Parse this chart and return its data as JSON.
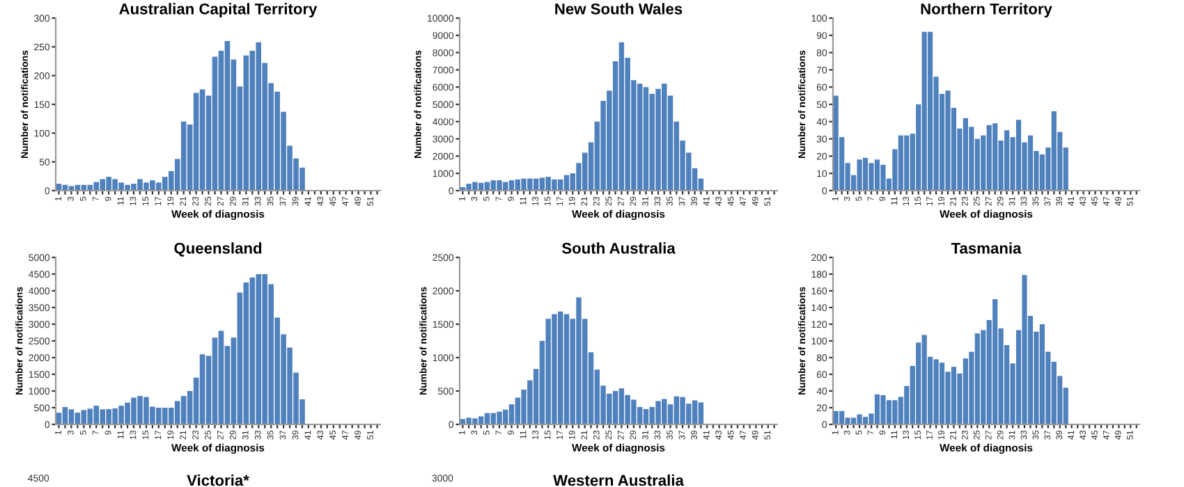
{
  "chart_data": [
    {
      "type": "bar",
      "title": "Australian Capital Territory",
      "xlabel": "Week of diagnosis",
      "ylabel": "Number of notifications",
      "color": "#4f81bd",
      "categories": [
        "1",
        null,
        "3",
        null,
        "5",
        null,
        "7",
        null,
        "9",
        null,
        "11",
        null,
        "13",
        null,
        "15",
        null,
        "17",
        null,
        "19",
        null,
        "21",
        null,
        "23",
        null,
        "25",
        null,
        "27",
        null,
        "29",
        null,
        "31",
        null,
        "33",
        null,
        "35",
        null,
        "37",
        null,
        "39",
        null,
        "41",
        null,
        "43",
        null,
        "45",
        null,
        "47",
        null,
        "49",
        null,
        "51",
        null
      ],
      "values": [
        12,
        10,
        8,
        10,
        10,
        10,
        15,
        20,
        24,
        20,
        14,
        10,
        12,
        20,
        14,
        18,
        14,
        24,
        34,
        55,
        120,
        115,
        170,
        176,
        165,
        233,
        243,
        260,
        228,
        181,
        235,
        243,
        258,
        222,
        187,
        172,
        137,
        78,
        56,
        40,
        null,
        null,
        null,
        null,
        null,
        null,
        null,
        null,
        null,
        null,
        null,
        null
      ],
      "ylim": [
        0,
        300
      ],
      "yticks": [
        0,
        50,
        100,
        150,
        200,
        250,
        300
      ],
      "grid": false
    },
    {
      "type": "bar",
      "title": "New South Wales",
      "xlabel": "Week of diagnosis",
      "ylabel": "Number of notifications",
      "color": "#4f81bd",
      "categories": [
        "1",
        null,
        "3",
        null,
        "5",
        null,
        "7",
        null,
        "9",
        null,
        "11",
        null,
        "13",
        null,
        "15",
        null,
        "17",
        null,
        "19",
        null,
        "21",
        null,
        "23",
        null,
        "25",
        null,
        "27",
        null,
        "29",
        null,
        "31",
        null,
        "33",
        null,
        "35",
        null,
        "37",
        null,
        "39",
        null,
        "41",
        null,
        "43",
        null,
        "45",
        null,
        "47",
        null,
        "49",
        null,
        "51",
        null
      ],
      "values": [
        200,
        400,
        500,
        450,
        500,
        600,
        600,
        500,
        600,
        650,
        700,
        700,
        700,
        750,
        800,
        650,
        650,
        900,
        1000,
        1600,
        2200,
        2800,
        4000,
        5200,
        5800,
        7500,
        8600,
        7700,
        6400,
        6200,
        6000,
        5600,
        5900,
        6200,
        5500,
        4000,
        2900,
        2200,
        1300,
        700,
        null,
        null,
        null,
        null,
        null,
        null,
        null,
        null,
        null,
        null,
        null,
        null
      ],
      "ylim": [
        0,
        10000
      ],
      "yticks": [
        0,
        1000,
        2000,
        3000,
        4000,
        5000,
        6000,
        7000,
        8000,
        9000,
        10000
      ],
      "grid": false
    },
    {
      "type": "bar",
      "title": "Northern Territory",
      "xlabel": "Week of diagnosis",
      "ylabel": "Number of notifications",
      "color": "#4f81bd",
      "categories": [
        "1",
        null,
        "3",
        null,
        "5",
        null,
        "7",
        null,
        "9",
        null,
        "11",
        null,
        "13",
        null,
        "15",
        null,
        "17",
        null,
        "19",
        null,
        "21",
        null,
        "23",
        null,
        "25",
        null,
        "27",
        null,
        "29",
        null,
        "31",
        null,
        "33",
        null,
        "35",
        null,
        "37",
        null,
        "39",
        null,
        "41",
        null,
        "43",
        null,
        "45",
        null,
        "47",
        null,
        "49",
        null,
        "51",
        null
      ],
      "values": [
        55,
        31,
        16,
        9,
        18,
        19,
        16,
        18,
        15,
        7,
        24,
        32,
        32,
        33,
        50,
        92,
        92,
        66,
        56,
        58,
        48,
        36,
        42,
        37,
        30,
        32,
        38,
        39,
        29,
        35,
        31,
        41,
        28,
        32,
        23,
        21,
        25,
        46,
        34,
        25,
        null,
        null,
        null,
        null,
        null,
        null,
        null,
        null,
        null,
        null,
        null,
        null
      ],
      "ylim": [
        0,
        100
      ],
      "yticks": [
        0,
        10,
        20,
        30,
        40,
        50,
        60,
        70,
        80,
        90,
        100
      ],
      "grid": false
    },
    {
      "type": "bar",
      "title": "Queensland",
      "xlabel": "Week of diagnosis",
      "ylabel": "Number of notifications",
      "color": "#4f81bd",
      "categories": [
        "1",
        null,
        "3",
        null,
        "5",
        null,
        "7",
        null,
        "9",
        null,
        "11",
        null,
        "13",
        null,
        "15",
        null,
        "17",
        null,
        "19",
        null,
        "21",
        null,
        "23",
        null,
        "25",
        null,
        "27",
        null,
        "29",
        null,
        "31",
        null,
        "33",
        null,
        "35",
        null,
        "37",
        null,
        "39",
        null,
        "41",
        null,
        "43",
        null,
        "45",
        null,
        "47",
        null,
        "49",
        null,
        "51",
        null
      ],
      "values": [
        350,
        520,
        450,
        350,
        430,
        470,
        560,
        450,
        460,
        480,
        560,
        650,
        800,
        850,
        820,
        530,
        500,
        500,
        500,
        700,
        850,
        1000,
        1400,
        2100,
        2050,
        2600,
        2800,
        2350,
        2600,
        3950,
        4250,
        4400,
        4500,
        4500,
        4200,
        3200,
        2700,
        2300,
        1550,
        750,
        null,
        null,
        null,
        null,
        null,
        null,
        null,
        null,
        null,
        null,
        null,
        null
      ],
      "ylim": [
        0,
        5000
      ],
      "yticks": [
        0,
        500,
        1000,
        1500,
        2000,
        2500,
        3000,
        3500,
        4000,
        4500,
        5000
      ],
      "grid": false
    },
    {
      "type": "bar",
      "title": "South Australia",
      "xlabel": "Week of diagnosis",
      "ylabel": "Number of notifications",
      "color": "#4f81bd",
      "categories": [
        "1",
        null,
        "3",
        null,
        "5",
        null,
        "7",
        null,
        "9",
        null,
        "11",
        null,
        "13",
        null,
        "15",
        null,
        "17",
        null,
        "19",
        null,
        "21",
        null,
        "23",
        null,
        "25",
        null,
        "27",
        null,
        "29",
        null,
        "31",
        null,
        "33",
        null,
        "35",
        null,
        "37",
        null,
        "39",
        null,
        "41",
        null,
        "43",
        null,
        "45",
        null,
        "47",
        null,
        "49",
        null,
        "51",
        null
      ],
      "values": [
        80,
        100,
        90,
        120,
        170,
        170,
        190,
        220,
        300,
        400,
        520,
        660,
        830,
        1250,
        1580,
        1650,
        1690,
        1650,
        1580,
        1900,
        1580,
        1080,
        820,
        580,
        460,
        500,
        540,
        440,
        370,
        260,
        230,
        260,
        350,
        380,
        300,
        420,
        410,
        310,
        360,
        330,
        null,
        null,
        null,
        null,
        null,
        null,
        null,
        null,
        null,
        null,
        null,
        null
      ],
      "ylim": [
        0,
        2500
      ],
      "yticks": [
        0,
        500,
        1000,
        1500,
        2000,
        2500
      ],
      "grid": false
    },
    {
      "type": "bar",
      "title": "Tasmania",
      "xlabel": "Week of diagnosis",
      "ylabel": "Number of notifications",
      "color": "#4f81bd",
      "categories": [
        "1",
        null,
        "3",
        null,
        "5",
        null,
        "7",
        null,
        "9",
        null,
        "11",
        null,
        "13",
        null,
        "15",
        null,
        "17",
        null,
        "19",
        null,
        "21",
        null,
        "23",
        null,
        "25",
        null,
        "27",
        null,
        "29",
        null,
        "31",
        null,
        "33",
        null,
        "35",
        null,
        "37",
        null,
        "39",
        null,
        "41",
        null,
        "43",
        null,
        "45",
        null,
        "47",
        null,
        "49",
        null,
        "51",
        null
      ],
      "values": [
        16,
        16,
        8,
        8,
        12,
        9,
        13,
        36,
        35,
        29,
        29,
        33,
        46,
        70,
        98,
        107,
        81,
        78,
        74,
        63,
        69,
        61,
        79,
        87,
        109,
        113,
        125,
        150,
        115,
        95,
        73,
        113,
        179,
        130,
        111,
        120,
        87,
        75,
        58,
        44,
        null,
        null,
        null,
        null,
        null,
        null,
        null,
        null,
        null,
        null,
        null,
        null
      ],
      "ylim": [
        0,
        200
      ],
      "yticks": [
        0,
        20,
        40,
        60,
        80,
        100,
        120,
        140,
        160,
        180,
        200
      ],
      "grid": false
    },
    {
      "type": "other",
      "title": "Victoria*",
      "annotations": [
        "4500"
      ]
    },
    {
      "type": "other",
      "title": "Western Australia",
      "annotations": [
        "3000"
      ]
    }
  ]
}
